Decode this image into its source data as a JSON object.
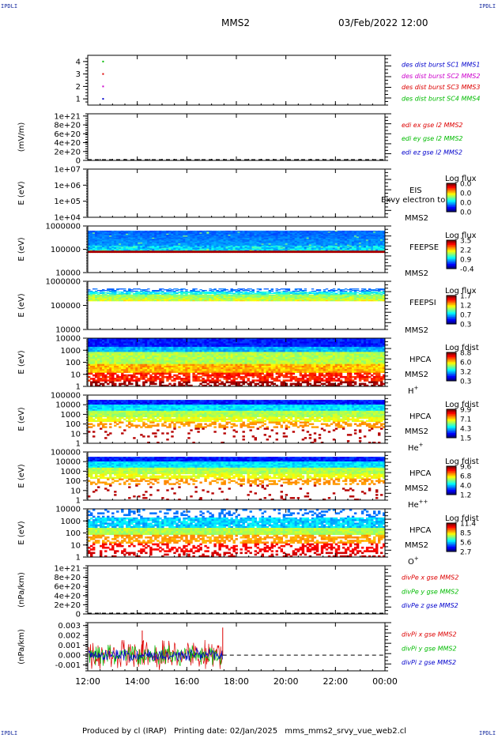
{
  "header": {
    "corner_label": "IPDLI",
    "spacecraft": "MMS2",
    "date": "03/Feb/2022 12:00"
  },
  "footer": {
    "produced_by": "Produced by cl (IRAP)",
    "printing_date": "Printing date: 02/Jan/2025",
    "filename": "mms_mms2_srvy_vue_web2.cl"
  },
  "chart_data": {
    "type": "multi-panel time series / spectrogram stack",
    "x_tick_labels": [
      "12:00",
      "14:00",
      "16:00",
      "18:00",
      "20:00",
      "22:00",
      "00:00"
    ],
    "x_range_hours": [
      12,
      24
    ],
    "data_end_hour": 17.45,
    "panels": [
      {
        "id": "burst",
        "type": "scatter",
        "y_ticks": [
          "4",
          "3",
          "2",
          "1"
        ],
        "y_values": [
          4,
          3,
          2,
          1
        ],
        "ylim": [
          0.5,
          4.5
        ],
        "points": [
          {
            "x_hour": 12.62,
            "y": 4,
            "color": "#00bb00"
          },
          {
            "x_hour": 12.62,
            "y": 3,
            "color": "#dd0000"
          },
          {
            "x_hour": 12.62,
            "y": 2,
            "color": "#cc00cc"
          },
          {
            "x_hour": 12.62,
            "y": 1,
            "color": "#0000cc"
          }
        ],
        "legend": [
          {
            "text": "des dist burst SC1 MMS1",
            "color": "#0000cc"
          },
          {
            "text": "des dist burst SC2 MMS2",
            "color": "#cc00cc"
          },
          {
            "text": "des dist burst SC3 MMS3",
            "color": "#dd0000"
          },
          {
            "text": "des dist burst SC4 MMS4",
            "color": "#00bb00"
          }
        ]
      },
      {
        "id": "edi",
        "type": "line",
        "ylabel": "(mV/m)",
        "y_ticks": [
          "1e+21",
          "8e+20",
          "6e+20",
          "4e+20",
          "2e+20",
          "0"
        ],
        "y_values": [
          1e+21,
          8e+20,
          6e+20,
          4e+20,
          2e+20,
          0
        ],
        "ylim": [
          0,
          1.05e+21
        ],
        "zero_line": true,
        "legend": [
          {
            "text": "edi ex gse l2 MMS2",
            "color": "#dd0000"
          },
          {
            "text": "edi ey gse l2 MMS2",
            "color": "#00bb00"
          },
          {
            "text": "edi ez gse l2 MMS2",
            "color": "#0000cc"
          }
        ]
      },
      {
        "id": "eis",
        "type": "heatmap",
        "ylabel": "E (eV)",
        "y_ticks": [
          "1e+07",
          "1e+06",
          "1e+05",
          "1e+04"
        ],
        "log_range": [
          4,
          7
        ],
        "label_main": "EIS",
        "label_sub": "MMS2",
        "overlay_text": "Exvy electron to",
        "colorbar_title": "Log flux",
        "colorbar_ticks": [
          "0.0",
          "0.0",
          "0.0",
          "0.0"
        ],
        "spectrum": null
      },
      {
        "id": "feeps_e",
        "type": "heatmap",
        "ylabel": "E (eV)",
        "y_ticks": [
          "1000000",
          "100000",
          "10000"
        ],
        "log_range": [
          4,
          6
        ],
        "label_main": "FEEPSE",
        "label_sub": "MMS2",
        "colorbar_title": "Log flux",
        "colorbar_ticks": [
          "3.5",
          "2.2",
          "0.9",
          "-0.4"
        ],
        "spectrum": {
          "log_low": 4.6,
          "log_high": 5.8,
          "band_low_log": 4.4,
          "band_high_log": 4.55,
          "style": "feepse"
        }
      },
      {
        "id": "feeps_i",
        "type": "heatmap",
        "ylabel": "E (eV)",
        "y_ticks": [
          "1000000",
          "100000",
          "10000"
        ],
        "log_range": [
          4,
          6
        ],
        "label_main": "FEEPSI",
        "label_sub": "MMS2",
        "colorbar_title": "Log flux",
        "colorbar_ticks": [
          "1.7",
          "1.2",
          "0.7",
          "0.3"
        ],
        "spectrum": {
          "log_low": 4.85,
          "log_high": 5.7,
          "style": "feepsi"
        }
      },
      {
        "id": "hpca_h",
        "type": "heatmap",
        "ylabel": "E (eV)",
        "y_ticks": [
          "10000",
          "1000",
          "100",
          "10",
          "1"
        ],
        "log_range": [
          0,
          4.3
        ],
        "label_main": "HPCA",
        "label_sub": "MMS2",
        "species": "H",
        "species_sup": "+",
        "colorbar_title": "Log fdist",
        "colorbar_ticks": [
          "8.8",
          "6.0",
          "3.2",
          "0.3"
        ],
        "spectrum": {
          "log_low": 0,
          "log_high": 4.3,
          "style": "hpca_h"
        }
      },
      {
        "id": "hpca_he",
        "type": "heatmap",
        "ylabel": "E (eV)",
        "y_ticks": [
          "100000",
          "10000",
          "1000",
          "100",
          "10",
          "1"
        ],
        "log_range": [
          0,
          5
        ],
        "label_main": "HPCA",
        "label_sub": "MMS2",
        "species": "He",
        "species_sup": "+",
        "colorbar_title": "Log fdist",
        "colorbar_ticks": [
          "9.9",
          "7.1",
          "4.3",
          "1.5"
        ],
        "spectrum": {
          "log_low": 0,
          "log_high": 4.5,
          "style": "hpca_he"
        }
      },
      {
        "id": "hpca_hepp",
        "type": "heatmap",
        "ylabel": "E (eV)",
        "y_ticks": [
          "100000",
          "10000",
          "1000",
          "100",
          "10",
          "1"
        ],
        "log_range": [
          0,
          5
        ],
        "label_main": "HPCA",
        "label_sub": "MMS2",
        "species": "He",
        "species_sup": "++",
        "colorbar_title": "Log fdist",
        "colorbar_ticks": [
          "9.6",
          "6.8",
          "4.0",
          "1.2"
        ],
        "spectrum": {
          "log_low": 0,
          "log_high": 4.5,
          "style": "hpca_hepp"
        }
      },
      {
        "id": "hpca_o",
        "type": "heatmap",
        "ylabel": "E (eV)",
        "y_ticks": [
          "10000",
          "1000",
          "100",
          "10",
          "1"
        ],
        "log_range": [
          0,
          4.3
        ],
        "label_main": "HPCA",
        "label_sub": "MMS2",
        "species": "O",
        "species_sup": "+",
        "colorbar_title": "Log fdist",
        "colorbar_ticks": [
          "11.4",
          "8.5",
          "5.6",
          "2.7"
        ],
        "spectrum": {
          "log_low": 0,
          "log_high": 4.3,
          "style": "hpca_o"
        }
      },
      {
        "id": "divpe",
        "type": "line",
        "ylabel": "(nPa/km)",
        "y_ticks": [
          "1e+21",
          "8e+20",
          "6e+20",
          "4e+20",
          "2e+20",
          "0"
        ],
        "y_values": [
          1e+21,
          8e+20,
          6e+20,
          4e+20,
          2e+20,
          0
        ],
        "ylim": [
          0,
          1.05e+21
        ],
        "zero_line": true,
        "legend": [
          {
            "text": "divPe x gse MMS2",
            "color": "#dd0000"
          },
          {
            "text": "divPe y gse MMS2",
            "color": "#00bb00"
          },
          {
            "text": "divPe z gse MMS2",
            "color": "#0000cc"
          }
        ]
      },
      {
        "id": "divpi",
        "type": "line",
        "ylabel": "(nPa/km)",
        "y_ticks": [
          "0.003",
          "0.002",
          "0.001",
          "0.000",
          "-0.001"
        ],
        "y_values": [
          0.003,
          0.002,
          0.001,
          0.0,
          -0.001
        ],
        "ylim": [
          -0.0016,
          0.0033
        ],
        "zero_line": true,
        "noisy_series": {
          "x_end_hour": 17.45,
          "amplitudes": [
            0.0012,
            0.0008,
            0.0005
          ],
          "spike": {
            "x_hour": 14.2,
            "y": 0.0025
          }
        },
        "legend": [
          {
            "text": "divPi x gse MMS2",
            "color": "#dd0000"
          },
          {
            "text": "divPi y gse MMS2",
            "color": "#00bb00"
          },
          {
            "text": "divPi z gse MMS2",
            "color": "#0000cc"
          }
        ]
      }
    ]
  }
}
